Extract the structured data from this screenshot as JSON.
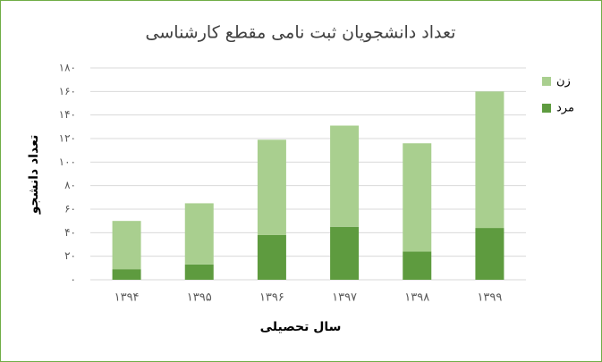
{
  "chart_data": {
    "type": "stacked_bar",
    "title": "تعداد دانشجویان ثبت نامی مقطع کارشناسی",
    "x_label": "سال تحصیلی",
    "y_label": "تعداد دانشجو",
    "categories": [
      "۱۳۹۴",
      "۱۳۹۵",
      "۱۳۹۶",
      "۱۳۹۷",
      "۱۳۹۸",
      "۱۳۹۹"
    ],
    "series": [
      {
        "name": "مرد",
        "color": "#5e9b3f",
        "values": [
          9,
          13,
          38,
          45,
          24,
          44
        ]
      },
      {
        "name": "زن",
        "color": "#a9cf8f",
        "values": [
          41,
          52,
          81,
          86,
          92,
          116
        ]
      }
    ],
    "ylim": [
      0,
      180
    ],
    "yticks": [
      {
        "value": 0,
        "label": "۰"
      },
      {
        "value": 20,
        "label": "۲۰"
      },
      {
        "value": 40,
        "label": "۴۰"
      },
      {
        "value": 60,
        "label": "۶۰"
      },
      {
        "value": 80,
        "label": "۸۰"
      },
      {
        "value": 100,
        "label": "۱۰۰"
      },
      {
        "value": 120,
        "label": "۱۲۰"
      },
      {
        "value": 140,
        "label": "۱۴۰"
      },
      {
        "value": 160,
        "label": "۱۶۰"
      },
      {
        "value": 180,
        "label": "۱۸۰"
      }
    ],
    "grid": true,
    "legend": "right"
  }
}
